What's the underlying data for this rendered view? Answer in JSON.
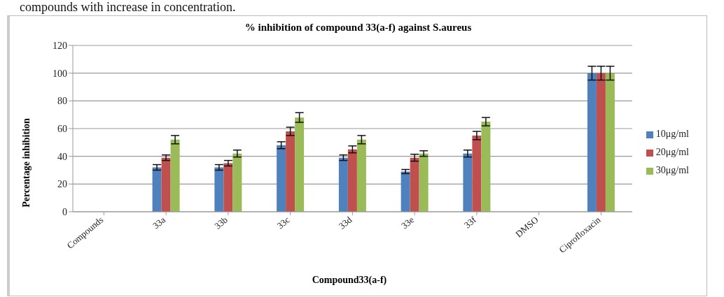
{
  "chart_data": {
    "type": "bar",
    "title": "% inhibition of compound 33(a-f) against S.aureus",
    "xlabel": "Compound33(a-f)",
    "ylabel": "Percentage inhibition",
    "annotations": [
      "compounds with increase in concentration."
    ],
    "categories": [
      "Compounds",
      "33a",
      "33b",
      "33c",
      "33d",
      "33e",
      "33f",
      "DMSO",
      "Ciprofloxacin"
    ],
    "series": [
      {
        "name": "10μg/ml",
        "color": "#4f81bd",
        "values": [
          null,
          32,
          32,
          48,
          39,
          29,
          42,
          null,
          100
        ],
        "errors": [
          null,
          2,
          2,
          2.5,
          2,
          1.5,
          2.5,
          null,
          5
        ]
      },
      {
        "name": "20μg/ml",
        "color": "#c0504d",
        "values": [
          null,
          39,
          35,
          58,
          45,
          39,
          55,
          null,
          100
        ],
        "errors": [
          null,
          2,
          2,
          3,
          2.5,
          2.5,
          3,
          null,
          5
        ]
      },
      {
        "name": "30μg/ml",
        "color": "#9bbb59",
        "values": [
          null,
          52,
          42,
          68,
          52,
          42,
          65,
          null,
          100
        ],
        "errors": [
          null,
          3,
          2.5,
          3.5,
          3,
          2,
          3,
          null,
          5
        ]
      }
    ],
    "ylim": [
      0,
      120
    ],
    "yticks": [
      0,
      20,
      40,
      60,
      80,
      100,
      120
    ],
    "grid": "y",
    "legend": "right"
  }
}
